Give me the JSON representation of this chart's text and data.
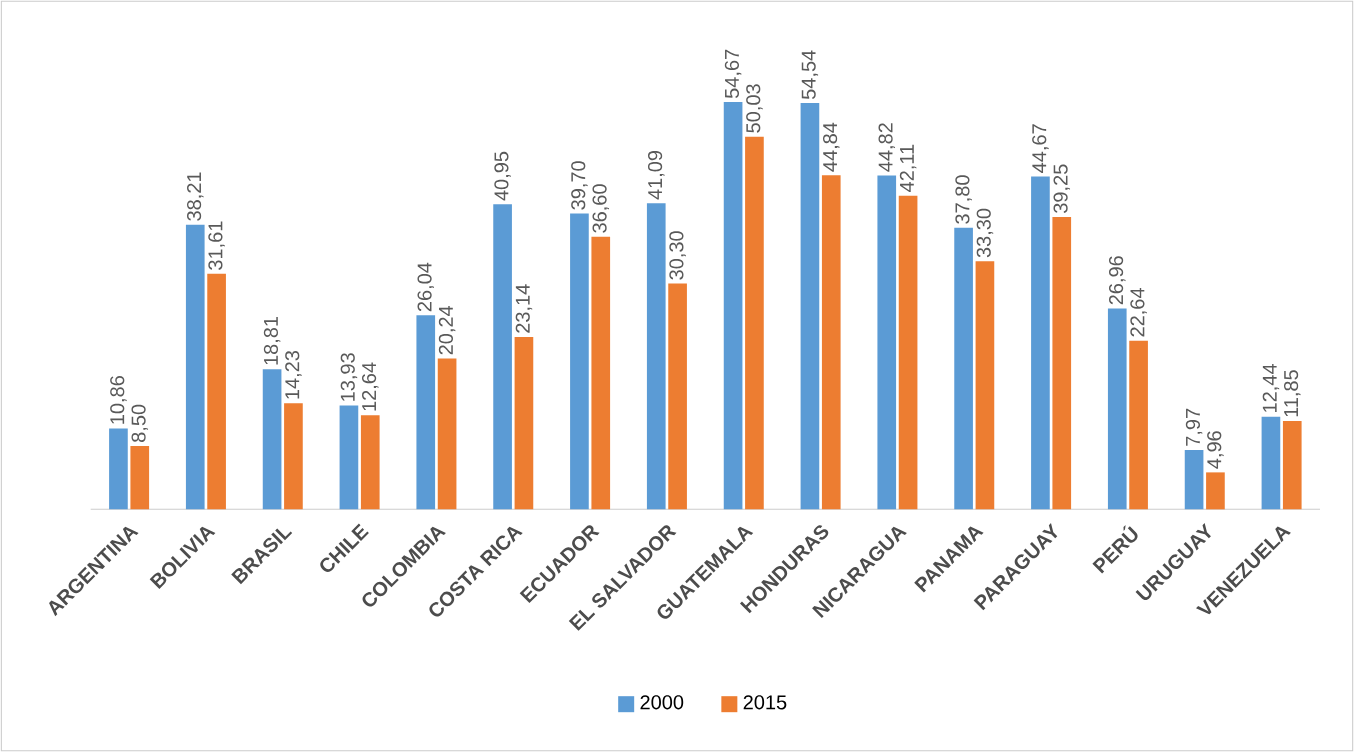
{
  "chart_data": {
    "type": "bar",
    "categories": [
      "ARGENTINA",
      "BOLIVIA",
      "BRASIL",
      "CHILE",
      "COLOMBIA",
      "COSTA RICA",
      "ECUADOR",
      "EL SALVADOR",
      "GUATEMALA",
      "HONDURAS",
      "NICARAGUA",
      "PANAMA",
      "PARAGUAY",
      "PERÚ",
      "URUGUAY",
      "VENEZUELA"
    ],
    "series": [
      {
        "name": "2000",
        "color": "#5b9bd5",
        "values": [
          10.86,
          38.21,
          18.81,
          13.93,
          26.04,
          40.95,
          39.7,
          41.09,
          54.67,
          54.54,
          44.82,
          37.8,
          44.67,
          26.96,
          7.97,
          12.44
        ],
        "value_labels": [
          "10,86",
          "38,21",
          "18,81",
          "13,93",
          "26,04",
          "40,95",
          "39,70",
          "41,09",
          "54,67",
          "54,54",
          "44,82",
          "37,80",
          "44,67",
          "26,96",
          "7,97",
          "12,44"
        ]
      },
      {
        "name": "2015",
        "color": "#ed7d31",
        "values": [
          8.5,
          31.61,
          14.23,
          12.64,
          20.24,
          23.14,
          36.6,
          30.3,
          50.03,
          44.84,
          42.11,
          33.3,
          39.25,
          22.64,
          4.96,
          11.85
        ],
        "value_labels": [
          "8,50",
          "31,61",
          "14,23",
          "12,64",
          "20,24",
          "23,14",
          "36,60",
          "30,30",
          "50,03",
          "44,84",
          "42,11",
          "33,30",
          "39,25",
          "22,64",
          "4,96",
          "11,85"
        ]
      }
    ],
    "legend": "bottom"
  }
}
